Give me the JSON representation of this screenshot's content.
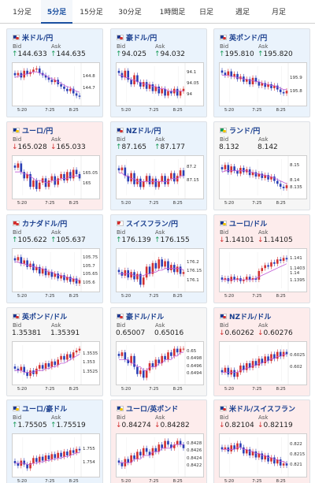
{
  "tabs": [
    {
      "label": "1分足",
      "active": false
    },
    {
      "label": "5分足",
      "active": true
    },
    {
      "label": "15分足",
      "active": false
    },
    {
      "label": "30分足",
      "active": false
    },
    {
      "label": "1時間足",
      "active": false
    },
    {
      "label": "日足",
      "active": false
    },
    {
      "label": "週足",
      "active": false
    },
    {
      "label": "月足",
      "active": false
    }
  ],
  "labels": {
    "bid": "Bid",
    "ask": "Ask"
  },
  "colors": {
    "up_bg": "#eaf3fc",
    "down_bg": "#fdecec",
    "arrow_up": "#1a9c5a",
    "arrow_down": "#d23030",
    "candle_up": "#d23030",
    "candle_down": "#2b3fb5",
    "ma_line": "#c25cd6",
    "ma_line2": "#3aa0d8"
  },
  "panels": [
    {
      "pair": "米ドル/円",
      "direction": "up",
      "bid": "144.633",
      "ask": "144.635",
      "flag": "us",
      "chart_data": {
        "type": "candlestick",
        "x_ticks": [
          "5:20",
          "7:25",
          "8:25"
        ],
        "y_ticks": [
          "144.8",
          "144.7"
        ],
        "ylim": [
          144.58,
          144.9
        ],
        "close": [
          144.82,
          144.84,
          144.8,
          144.86,
          144.83,
          144.85,
          144.87,
          144.88,
          144.84,
          144.82,
          144.8,
          144.78,
          144.76,
          144.78,
          144.74,
          144.72,
          144.7,
          144.68,
          144.7,
          144.66,
          144.64,
          144.63
        ],
        "ma": [
          144.8,
          144.81,
          144.82,
          144.83,
          144.83,
          144.84,
          144.85,
          144.85,
          144.84,
          144.83,
          144.82,
          144.8,
          144.79,
          144.78,
          144.76,
          144.75,
          144.73,
          144.72,
          144.71,
          144.69,
          144.68,
          144.67
        ]
      }
    },
    {
      "pair": "豪ドル/円",
      "direction": "up",
      "bid": "94.025",
      "ask": "94.032",
      "flag": "au",
      "chart_data": {
        "type": "candlestick",
        "x_ticks": [
          "5:20",
          "7:25",
          "8:25"
        ],
        "y_ticks": [
          "94.1",
          "94.05",
          "94"
        ],
        "ylim": [
          93.97,
          94.13
        ],
        "close": [
          94.1,
          94.08,
          94.11,
          94.07,
          94.05,
          94.09,
          94.06,
          94.04,
          94.06,
          94.03,
          94.05,
          94.02,
          94.04,
          94.01,
          94.03,
          94.0,
          94.02,
          94.01,
          94.03,
          94.0,
          94.02,
          94.03
        ],
        "ma": [
          94.09,
          94.09,
          94.08,
          94.08,
          94.07,
          94.07,
          94.06,
          94.06,
          94.05,
          94.05,
          94.05,
          94.04,
          94.04,
          94.03,
          94.03,
          94.03,
          94.02,
          94.02,
          94.02,
          94.02,
          94.02,
          94.02
        ]
      }
    },
    {
      "pair": "英ポンド/円",
      "direction": "up",
      "bid": "195.810",
      "ask": "195.820",
      "flag": "uk",
      "chart_data": {
        "type": "candlestick",
        "x_ticks": [
          "5:20",
          "7:25",
          "8:25"
        ],
        "y_ticks": [
          "195.9",
          "195.8"
        ],
        "ylim": [
          195.72,
          196.0
        ],
        "close": [
          195.95,
          195.93,
          195.96,
          195.92,
          195.94,
          195.9,
          195.92,
          195.88,
          195.9,
          195.86,
          195.91,
          195.88,
          195.85,
          195.87,
          195.84,
          195.86,
          195.83,
          195.85,
          195.82,
          195.8,
          195.79,
          195.81
        ],
        "ma": [
          195.93,
          195.93,
          195.93,
          195.92,
          195.92,
          195.91,
          195.91,
          195.9,
          195.9,
          195.89,
          195.89,
          195.88,
          195.88,
          195.87,
          195.86,
          195.86,
          195.85,
          195.85,
          195.84,
          195.83,
          195.82,
          195.82
        ]
      }
    },
    {
      "pair": "ユーロ/円",
      "direction": "down",
      "bid": "165.028",
      "ask": "165.033",
      "flag": "eu",
      "chart_data": {
        "type": "candlestick",
        "x_ticks": [
          "5:20",
          "7:25",
          "8:25"
        ],
        "y_ticks": [
          "165.05",
          "165"
        ],
        "ylim": [
          164.95,
          165.12
        ],
        "close": [
          165.08,
          165.1,
          165.06,
          165.03,
          165.05,
          164.99,
          165.02,
          164.98,
          165.01,
          165.03,
          164.99,
          165.02,
          165.04,
          165.0,
          165.03,
          165.05,
          165.02,
          165.06,
          165.03,
          165.07,
          165.05,
          165.03
        ],
        "ma": [
          165.06,
          165.06,
          165.06,
          165.05,
          165.05,
          165.04,
          165.03,
          165.02,
          165.02,
          165.02,
          165.01,
          165.01,
          165.02,
          165.02,
          165.02,
          165.03,
          165.03,
          165.03,
          165.04,
          165.04,
          165.04,
          165.04
        ]
      }
    },
    {
      "pair": "NZドル/円",
      "direction": "up",
      "bid": "87.165",
      "ask": "87.177",
      "flag": "nz",
      "chart_data": {
        "type": "candlestick",
        "x_ticks": [
          "5:20",
          "7:25",
          "8:25"
        ],
        "y_ticks": [
          "87.2",
          "87.15"
        ],
        "ylim": [
          87.1,
          87.23
        ],
        "close": [
          87.19,
          87.2,
          87.17,
          87.15,
          87.18,
          87.14,
          87.16,
          87.13,
          87.15,
          87.17,
          87.14,
          87.16,
          87.13,
          87.15,
          87.17,
          87.14,
          87.16,
          87.18,
          87.15,
          87.17,
          87.19,
          87.17
        ],
        "ma": [
          87.18,
          87.18,
          87.17,
          87.17,
          87.16,
          87.16,
          87.15,
          87.15,
          87.15,
          87.15,
          87.15,
          87.15,
          87.15,
          87.15,
          87.15,
          87.15,
          87.15,
          87.16,
          87.16,
          87.16,
          87.17,
          87.17
        ]
      }
    },
    {
      "pair": "ランド/円",
      "direction": "flat",
      "bid": "8.132",
      "ask": "8.142",
      "flag": "za",
      "chart_data": {
        "type": "candlestick",
        "x_ticks": [
          "5:20",
          "7:25",
          "8:25"
        ],
        "y_ticks": [
          "8.15",
          "8.14",
          "8.135"
        ],
        "ylim": [
          8.13,
          8.155
        ],
        "close": [
          8.148,
          8.151,
          8.146,
          8.15,
          8.147,
          8.145,
          8.149,
          8.146,
          8.148,
          8.144,
          8.146,
          8.143,
          8.145,
          8.142,
          8.144,
          8.141,
          8.143,
          8.14,
          8.138,
          8.136,
          8.135,
          8.137
        ],
        "ma": [
          8.146,
          8.147,
          8.147,
          8.147,
          8.147,
          8.147,
          8.147,
          8.147,
          8.147,
          8.146,
          8.146,
          8.145,
          8.145,
          8.144,
          8.144,
          8.143,
          8.143,
          8.142,
          8.141,
          8.14,
          8.139,
          8.138
        ]
      }
    },
    {
      "pair": "カナダドル/円",
      "direction": "up",
      "bid": "105.622",
      "ask": "105.637",
      "flag": "ca",
      "chart_data": {
        "type": "candlestick",
        "x_ticks": [
          "5:20",
          "7:25",
          "8:25"
        ],
        "y_ticks": [
          "105.75",
          "105.7",
          "105.65",
          "105.6"
        ],
        "ylim": [
          105.57,
          105.79
        ],
        "close": [
          105.74,
          105.76,
          105.72,
          105.74,
          105.7,
          105.72,
          105.68,
          105.7,
          105.66,
          105.69,
          105.65,
          105.67,
          105.64,
          105.66,
          105.63,
          105.65,
          105.62,
          105.64,
          105.61,
          105.63,
          105.6,
          105.62
        ],
        "ma": [
          105.73,
          105.73,
          105.72,
          105.72,
          105.71,
          105.71,
          105.7,
          105.7,
          105.69,
          105.69,
          105.68,
          105.67,
          105.67,
          105.66,
          105.65,
          105.65,
          105.64,
          105.64,
          105.63,
          105.63,
          105.62,
          105.62
        ]
      }
    },
    {
      "pair": "スイスフラン/円",
      "direction": "up",
      "bid": "176.139",
      "ask": "176.155",
      "flag": "ch",
      "chart_data": {
        "type": "candlestick",
        "x_ticks": [
          "5:20",
          "7:25",
          "8:25"
        ],
        "y_ticks": [
          "176.2",
          "176.15",
          "176.1"
        ],
        "ylim": [
          176.06,
          176.26
        ],
        "close": [
          176.15,
          176.13,
          176.16,
          176.12,
          176.15,
          176.11,
          176.14,
          176.08,
          176.12,
          176.18,
          176.14,
          176.2,
          176.17,
          176.22,
          176.18,
          176.21,
          176.16,
          176.19,
          176.15,
          176.18,
          176.14,
          176.15
        ],
        "ma": [
          176.14,
          176.14,
          176.14,
          176.14,
          176.14,
          176.13,
          176.13,
          176.13,
          176.13,
          176.14,
          176.14,
          176.15,
          176.15,
          176.16,
          176.16,
          176.17,
          176.17,
          176.17,
          176.17,
          176.17,
          176.17,
          176.16
        ]
      }
    },
    {
      "pair": "ユーロ/ドル",
      "direction": "down",
      "bid": "1.14101",
      "ask": "1.14105",
      "flag": "eu",
      "chart_data": {
        "type": "candlestick",
        "x_ticks": [
          "5:20",
          "7:25",
          "8:25"
        ],
        "y_ticks": [
          "1.141",
          "1.1403",
          "1.14",
          "1.1395"
        ],
        "ylim": [
          1.139,
          1.1415
        ],
        "close": [
          1.1396,
          1.1397,
          1.1395,
          1.1398,
          1.1396,
          1.1397,
          1.1395,
          1.1396,
          1.1398,
          1.1396,
          1.1397,
          1.1396,
          1.1402,
          1.1404,
          1.1406,
          1.1405,
          1.1408,
          1.1407,
          1.141,
          1.1409,
          1.1411,
          1.141
        ],
        "ma": [
          1.1396,
          1.1396,
          1.1396,
          1.1396,
          1.1396,
          1.1396,
          1.1396,
          1.1396,
          1.1396,
          1.1396,
          1.1396,
          1.1397,
          1.1398,
          1.1399,
          1.14,
          1.1401,
          1.1402,
          1.1403,
          1.1404,
          1.1405,
          1.1406,
          1.1407
        ]
      }
    },
    {
      "pair": "英ポンド/ドル",
      "direction": "flat",
      "bid": "1.35381",
      "ask": "1.35391",
      "flag": "uk",
      "chart_data": {
        "type": "candlestick",
        "x_ticks": [
          "5:20",
          "7:25",
          "8:25"
        ],
        "y_ticks": [
          "1.3535",
          "1.353",
          "1.3525"
        ],
        "ylim": [
          1.352,
          1.354
        ],
        "close": [
          1.3527,
          1.3526,
          1.3528,
          1.3525,
          1.3523,
          1.3526,
          1.3524,
          1.3527,
          1.3529,
          1.3527,
          1.353,
          1.3528,
          1.3531,
          1.3529,
          1.3532,
          1.3534,
          1.3532,
          1.3535,
          1.3533,
          1.3536,
          1.3537,
          1.3538
        ],
        "ma": [
          1.3526,
          1.3526,
          1.3526,
          1.3525,
          1.3525,
          1.3525,
          1.3525,
          1.3526,
          1.3526,
          1.3526,
          1.3527,
          1.3527,
          1.3528,
          1.3528,
          1.3529,
          1.353,
          1.353,
          1.3531,
          1.3532,
          1.3533,
          1.3534,
          1.3535
        ]
      }
    },
    {
      "pair": "豪ドル/ドル",
      "direction": "flat",
      "bid": "0.65007",
      "ask": "0.65016",
      "flag": "au",
      "chart_data": {
        "type": "candlestick",
        "x_ticks": [
          "5:20",
          "7:25",
          "8:25"
        ],
        "y_ticks": [
          "0.65",
          "0.6498",
          "0.6496",
          "0.6494"
        ],
        "ylim": [
          0.6492,
          0.6502
        ],
        "close": [
          0.6499,
          0.65,
          0.6498,
          0.6497,
          0.6499,
          0.6496,
          0.6494,
          0.6495,
          0.6493,
          0.6495,
          0.6497,
          0.6496,
          0.6498,
          0.6497,
          0.6499,
          0.6498,
          0.65,
          0.6499,
          0.6501,
          0.65,
          0.6501,
          0.6501
        ],
        "ma": [
          0.6498,
          0.6498,
          0.6498,
          0.6498,
          0.6497,
          0.6497,
          0.6496,
          0.6496,
          0.6495,
          0.6495,
          0.6496,
          0.6496,
          0.6496,
          0.6497,
          0.6497,
          0.6498,
          0.6498,
          0.6498,
          0.6499,
          0.6499,
          0.65,
          0.65
        ]
      }
    },
    {
      "pair": "NZドル/ドル",
      "direction": "down",
      "bid": "0.60262",
      "ask": "0.60276",
      "flag": "nz",
      "chart_data": {
        "type": "candlestick",
        "x_ticks": [
          "5:20",
          "7:25",
          "8:25"
        ],
        "y_ticks": [
          "0.6025",
          "0.602"
        ],
        "ylim": [
          0.6014,
          0.603
        ],
        "close": [
          0.6018,
          0.602,
          0.6017,
          0.6019,
          0.6016,
          0.6018,
          0.6021,
          0.6019,
          0.6022,
          0.602,
          0.6023,
          0.6021,
          0.6024,
          0.6022,
          0.6025,
          0.6023,
          0.6026,
          0.6024,
          0.6027,
          0.6025,
          0.6027,
          0.6026
        ],
        "ma": [
          0.6018,
          0.6018,
          0.6018,
          0.6018,
          0.6018,
          0.6018,
          0.6019,
          0.6019,
          0.602,
          0.602,
          0.6021,
          0.6021,
          0.6022,
          0.6022,
          0.6023,
          0.6023,
          0.6024,
          0.6024,
          0.6025,
          0.6025,
          0.6026,
          0.6026
        ]
      }
    },
    {
      "pair": "ユーロ/豪ドル",
      "direction": "up",
      "bid": "1.75505",
      "ask": "1.75519",
      "flag": "eu",
      "chart_data": {
        "type": "candlestick",
        "x_ticks": [
          "5:20",
          "7:25",
          "8:25"
        ],
        "y_ticks": [
          "1.755",
          "1.754"
        ],
        "ylim": [
          1.7532,
          1.756
        ],
        "close": [
          1.754,
          1.7538,
          1.7542,
          1.7539,
          1.7536,
          1.754,
          1.7544,
          1.7541,
          1.7545,
          1.7542,
          1.7546,
          1.7543,
          1.7547,
          1.7544,
          1.7548,
          1.7545,
          1.7549,
          1.7546,
          1.755,
          1.7548,
          1.7551,
          1.755
        ],
        "ma": [
          1.754,
          1.754,
          1.754,
          1.754,
          1.7539,
          1.7539,
          1.754,
          1.754,
          1.7541,
          1.7541,
          1.7542,
          1.7542,
          1.7543,
          1.7543,
          1.7544,
          1.7544,
          1.7545,
          1.7545,
          1.7546,
          1.7547,
          1.7548,
          1.7548
        ]
      }
    },
    {
      "pair": "ユーロ/英ポンド",
      "direction": "down",
      "bid": "0.84274",
      "ask": "0.84282",
      "flag": "eu",
      "chart_data": {
        "type": "candlestick",
        "x_ticks": [
          "5:20",
          "7:25",
          "8:25"
        ],
        "y_ticks": [
          "0.8428",
          "0.8426",
          "0.8424",
          "0.8422"
        ],
        "ylim": [
          0.842,
          0.843
        ],
        "close": [
          0.8423,
          0.8422,
          0.8424,
          0.8423,
          0.8425,
          0.8424,
          0.8426,
          0.8425,
          0.8427,
          0.8426,
          0.8425,
          0.8427,
          0.8426,
          0.8428,
          0.8427,
          0.8429,
          0.8428,
          0.8427,
          0.8428,
          0.8429,
          0.8428,
          0.8427
        ],
        "ma": [
          0.8423,
          0.8423,
          0.8423,
          0.8423,
          0.8423,
          0.8424,
          0.8424,
          0.8424,
          0.8425,
          0.8425,
          0.8425,
          0.8426,
          0.8426,
          0.8426,
          0.8427,
          0.8427,
          0.8427,
          0.8427,
          0.8428,
          0.8428,
          0.8428,
          0.8428
        ]
      }
    },
    {
      "pair": "米ドル/スイスフラン",
      "direction": "down",
      "bid": "0.82104",
      "ask": "0.82119",
      "flag": "us",
      "chart_data": {
        "type": "candlestick",
        "x_ticks": [
          "5:20",
          "7:25",
          "8:25"
        ],
        "y_ticks": [
          "0.822",
          "0.8215",
          "0.821"
        ],
        "ylim": [
          0.8206,
          0.8224
        ],
        "close": [
          0.8218,
          0.8219,
          0.8217,
          0.822,
          0.8218,
          0.8221,
          0.8219,
          0.8216,
          0.8218,
          0.8215,
          0.8217,
          0.8214,
          0.8216,
          0.8213,
          0.8215,
          0.8212,
          0.8214,
          0.8211,
          0.8213,
          0.821,
          0.8211,
          0.821
        ],
        "ma": [
          0.8218,
          0.8218,
          0.8218,
          0.8218,
          0.8218,
          0.8219,
          0.8219,
          0.8218,
          0.8218,
          0.8217,
          0.8217,
          0.8216,
          0.8216,
          0.8215,
          0.8215,
          0.8214,
          0.8214,
          0.8213,
          0.8213,
          0.8212,
          0.8212,
          0.8211
        ]
      }
    }
  ]
}
